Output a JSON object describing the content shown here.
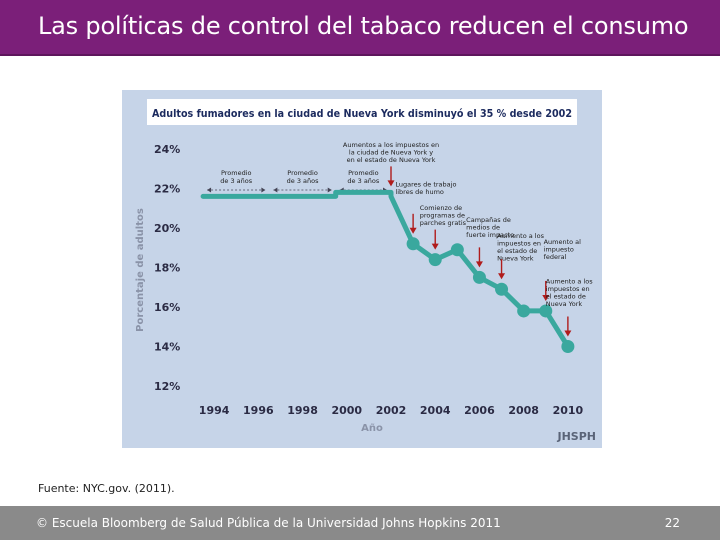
{
  "slide": {
    "title": "Las políticas de control del tabaco reducen el consumo",
    "source": "Fuente: NYC.gov. (2011).",
    "footer": "© Escuela Bloomberg de Salud Pública de la Universidad Johns Hopkins 2011",
    "page_number": "22",
    "colors": {
      "title_bg": "#7b1f79",
      "footer_bg": "#8a8a8a"
    }
  },
  "chart_data": {
    "type": "line",
    "title": "Adultos fumadores en la ciudad de Nueva York disminuyó el 35 % desde 2002",
    "xlabel": "Año",
    "ylabel": "Porcentaje de adultos",
    "xlim": [
      1993,
      2011
    ],
    "ylim": [
      12,
      24
    ],
    "yticks": [
      12,
      14,
      16,
      18,
      20,
      22,
      24
    ],
    "ytick_labels": [
      "12%",
      "14%",
      "16%",
      "18%",
      "20%",
      "22%",
      "24%"
    ],
    "xticks": [
      1994,
      1996,
      1998,
      2000,
      2002,
      2004,
      2006,
      2008,
      2010
    ],
    "xtick_labels": [
      "1994",
      "1996",
      "1998",
      "2000",
      "2002",
      "2004",
      "2006",
      "2008",
      "2010"
    ],
    "grid": false,
    "series": [
      {
        "name": "Adultos fumadores",
        "color": "#3aa89e",
        "segments": [
          {
            "kind": "promedio",
            "x": [
              1993.5,
              1996.5
            ],
            "y": [
              21.6,
              21.6
            ]
          },
          {
            "kind": "promedio",
            "x": [
              1996.5,
              1999.5
            ],
            "y": [
              21.6,
              21.6
            ]
          },
          {
            "kind": "promedio",
            "x": [
              1999.5,
              2002.0
            ],
            "y": [
              21.8,
              21.8
            ]
          }
        ],
        "points": [
          {
            "x": 2002,
            "y": 21.6,
            "marker": false
          },
          {
            "x": 2003,
            "y": 19.2,
            "marker": true
          },
          {
            "x": 2004,
            "y": 18.4,
            "marker": true
          },
          {
            "x": 2005,
            "y": 18.9,
            "marker": true
          },
          {
            "x": 2006,
            "y": 17.5,
            "marker": true
          },
          {
            "x": 2007,
            "y": 16.9,
            "marker": true
          },
          {
            "x": 2008,
            "y": 15.8,
            "marker": true
          },
          {
            "x": 2009,
            "y": 15.8,
            "marker": true
          },
          {
            "x": 2010,
            "y": 14.0,
            "marker": true
          }
        ]
      }
    ],
    "period_labels": [
      {
        "lines": [
          "Promedio",
          "de 3 años"
        ],
        "x_from": 1993.5,
        "x_to": 1996.5
      },
      {
        "lines": [
          "Promedio",
          "de 3 años"
        ],
        "x_from": 1996.5,
        "x_to": 1999.5
      },
      {
        "lines": [
          "Promedio",
          "de 3 años"
        ],
        "x_from": 1999.5,
        "x_to": 2002.0
      }
    ],
    "annotations": [
      {
        "lines": [
          "Aumentos a los impuestos en",
          "la ciudad de Nueva York y",
          "en el estado de Nueva York"
        ],
        "x": 2002,
        "y": 24.1,
        "anchor": "middle",
        "arrow_x": 2002
      },
      {
        "lines": [
          "Lugares de trabajo",
          "libres de humo"
        ],
        "x": 2002.2,
        "y": 22.1,
        "anchor": "start",
        "arrow_x": 2003
      },
      {
        "lines": [
          "Comienzo de",
          "programas de",
          "parches gratis"
        ],
        "x": 2003.3,
        "y": 20.9,
        "anchor": "start",
        "arrow_x": 2004
      },
      {
        "lines": [
          "Campañas de",
          "medios de",
          "fuerte impacto"
        ],
        "x": 2005.4,
        "y": 20.3,
        "anchor": "start",
        "arrow_x": 2006
      },
      {
        "lines": [
          "Aumento a los",
          "impuestos en",
          "el estado de",
          "Nueva York"
        ],
        "x": 2006.8,
        "y": 19.5,
        "anchor": "start",
        "arrow_x": 2007
      },
      {
        "lines": [
          "Aumento al",
          "impuesto",
          "federal"
        ],
        "x": 2008.9,
        "y": 19.2,
        "anchor": "start",
        "arrow_x": 2009
      },
      {
        "lines": [
          "Aumento a los",
          "impuestos en",
          "el estado de",
          "Nueva York"
        ],
        "x": 2009.0,
        "y": 17.2,
        "anchor": "start",
        "arrow_x": 2010
      }
    ],
    "watermark": "JHSPH"
  }
}
